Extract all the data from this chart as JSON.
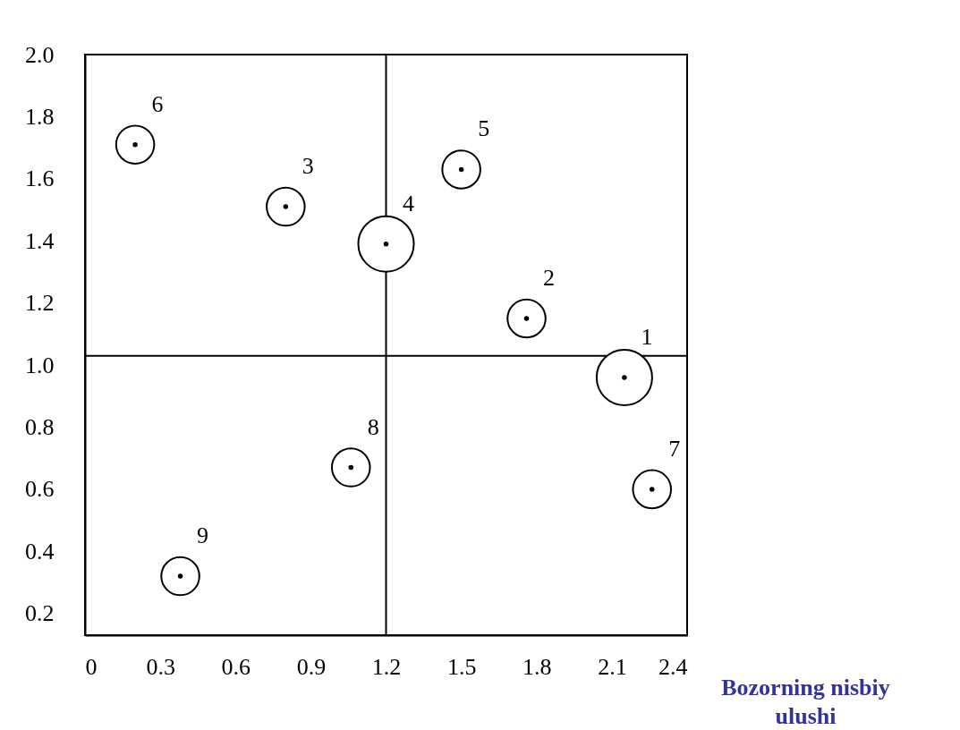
{
  "chart_data": {
    "type": "bubble",
    "xlabel": "Bozorning nisbiy ulushi",
    "x": [
      2.15,
      1.76,
      0.8,
      1.2,
      1.5,
      0.2,
      2.26,
      1.06,
      0.38
    ],
    "series": [
      {
        "color": "#000000",
        "values": [
          0.96,
          1.15,
          1.51,
          1.39,
          1.63,
          1.71,
          0.6,
          0.67,
          0.32
        ],
        "sizes": [
          1,
          0.47,
          0.47,
          1,
          0.47,
          0.47,
          0.47,
          0.47,
          0.47
        ]
      }
    ],
    "xlim": [
      0,
      2.4
    ],
    "ylim": [
      0.13,
      2.0
    ],
    "xticks": [
      0,
      0.3,
      0.6,
      0.9,
      1.2,
      1.5,
      1.8,
      2.1,
      2.4
    ],
    "yticks": [
      0.2,
      0.4,
      0.6,
      0.8,
      {
        "value": 1,
        "label": "1.0"
      },
      1.2,
      1.4,
      1.6,
      1.8,
      {
        "value": 2,
        "label": "2.0"
      }
    ],
    "ref_lines": [
      {
        "axis": "x",
        "value": 1.2
      },
      {
        "axis": "y",
        "value": 1.03
      }
    ],
    "annotations": [
      "1",
      "2",
      "3",
      "4",
      "5",
      "6",
      "7",
      "8",
      "9"
    ],
    "marker": "circle",
    "grid": false,
    "legend": false
  }
}
